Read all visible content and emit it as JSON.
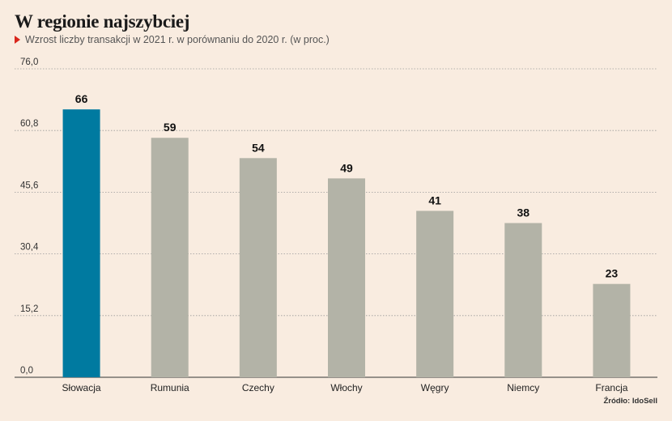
{
  "header": {
    "title": "W regionie najszybciej",
    "subtitle": "Wzrost liczby transakcji w 2021 r. w porównaniu do 2020 r. (w proc.)"
  },
  "source": "Źródło: IdoSell",
  "colors": {
    "highlight": "#007aa0",
    "bar": "#b3b3a7",
    "grid": "#9a9a9a",
    "background": "#f9ece0",
    "marker": "#d9261c"
  },
  "chart_data": {
    "type": "bar",
    "title": "W regionie najszybciej",
    "subtitle": "Wzrost liczby transakcji w 2021 r. w porównaniu do 2020 r. (w proc.)",
    "categories": [
      "Słowacja",
      "Rumunia",
      "Czechy",
      "Włochy",
      "Węgry",
      "Niemcy",
      "Francja"
    ],
    "values": [
      66,
      59,
      54,
      49,
      41,
      38,
      23
    ],
    "highlight_index": 0,
    "yticks": [
      "0,0",
      "15,2",
      "30,4",
      "45,6",
      "60,8",
      "76,0"
    ],
    "ylim": [
      0,
      76
    ],
    "xlabel": "",
    "ylabel": "",
    "grid": true,
    "grid_style": "dotted"
  }
}
